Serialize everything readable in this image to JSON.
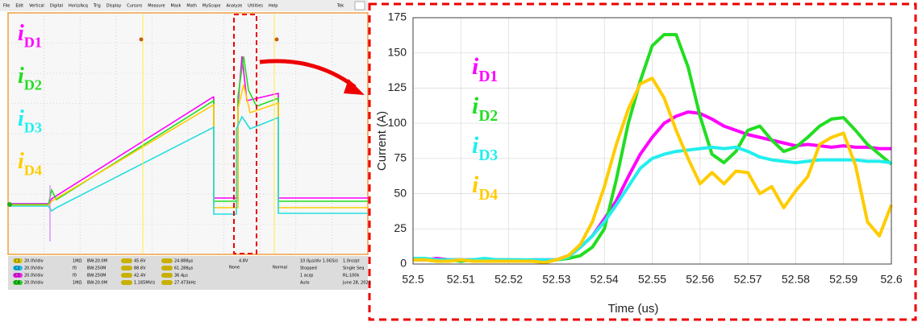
{
  "scope": {
    "menu": [
      "File",
      "Edit",
      "Vertical",
      "Digital",
      "Horiz/Acq",
      "Trig",
      "Display",
      "Cursors",
      "Measure",
      "Mask",
      "Math",
      "MyScope",
      "Analyze",
      "Utilities",
      "Help"
    ],
    "brand": "Tek",
    "channels": [
      {
        "id": "C1",
        "scale": "20.0V/div",
        "coupling": "1MΩ",
        "bw": "BW:20.0M"
      },
      {
        "id": "C2",
        "scale": "20.0V/div",
        "coupling": "f0",
        "bw": "BW:250M"
      },
      {
        "id": "C3",
        "scale": "20.0V/div",
        "coupling": "f0",
        "bw": "BW:250M"
      },
      {
        "id": "C4",
        "scale": "20.0V/div",
        "coupling": "1MΩ",
        "bw": "BW:20.0M"
      }
    ],
    "measurements": [
      [
        "45.6V",
        "24.888µs"
      ],
      [
        "88.6V",
        "61.288µs"
      ],
      [
        "42.4V",
        "36.4µs"
      ],
      [
        "1.165MV/s",
        "27.473kHz"
      ]
    ],
    "trigger": {
      "level": "4.8V",
      "mode": "None",
      "type": "Normal"
    },
    "acquisition": [
      [
        "10.0µs/div 1.0GS/s",
        "1.0ns/pt"
      ],
      [
        "Stopped",
        "Single Seq"
      ],
      [
        "1 acqs",
        "RL:100k"
      ],
      [
        "Auto",
        "June 28, 2022"
      ]
    ]
  },
  "chart_data": {
    "type": "line",
    "xlabel": "Time (us)",
    "ylabel": "Current (A)",
    "x": [
      52.5,
      52.5025,
      52.505,
      52.5075,
      52.51,
      52.5125,
      52.515,
      52.5175,
      52.52,
      52.5225,
      52.525,
      52.5275,
      52.53,
      52.5325,
      52.535,
      52.5375,
      52.54,
      52.5425,
      52.545,
      52.5475,
      52.55,
      52.5525,
      52.555,
      52.5575,
      52.56,
      52.5625,
      52.565,
      52.5675,
      52.57,
      52.5725,
      52.575,
      52.5775,
      52.58,
      52.5825,
      52.585,
      52.5875,
      52.59,
      52.5925,
      52.595,
      52.5975,
      52.6
    ],
    "series": [
      {
        "name": "iD1",
        "color": "#ff00ff",
        "values": [
          3,
          3,
          4,
          3,
          3,
          3,
          3,
          3,
          3,
          2,
          3,
          3,
          3,
          6,
          12,
          20,
          32,
          45,
          62,
          78,
          90,
          100,
          105,
          108,
          107,
          103,
          98,
          95,
          92,
          90,
          88,
          86,
          84,
          85,
          84,
          83,
          84,
          83,
          83,
          82,
          82
        ]
      },
      {
        "name": "iD2",
        "color": "#22dd22",
        "values": [
          3,
          3,
          3,
          3,
          2,
          3,
          3,
          3,
          3,
          3,
          2,
          2,
          3,
          4,
          6,
          12,
          25,
          60,
          100,
          130,
          155,
          163,
          163,
          140,
          105,
          78,
          72,
          80,
          95,
          98,
          88,
          80,
          83,
          90,
          98,
          103,
          104,
          95,
          85,
          78,
          71
        ]
      },
      {
        "name": "iD3",
        "color": "#22eeee",
        "values": [
          4,
          4,
          3,
          3,
          3,
          3,
          4,
          3,
          3,
          3,
          3,
          3,
          3,
          5,
          12,
          20,
          30,
          42,
          55,
          68,
          75,
          78,
          80,
          81,
          82,
          83,
          82,
          83,
          80,
          76,
          74,
          73,
          72,
          73,
          74,
          74,
          74,
          74,
          73,
          73,
          72
        ]
      },
      {
        "name": "iD4",
        "color": "#ffcc00",
        "values": [
          3,
          3,
          2,
          2,
          3,
          2,
          2,
          2,
          2,
          2,
          2,
          1,
          3,
          6,
          14,
          30,
          55,
          85,
          110,
          128,
          132,
          118,
          95,
          75,
          57,
          65,
          57,
          66,
          65,
          50,
          55,
          40,
          52,
          62,
          85,
          90,
          93,
          70,
          30,
          20,
          42
        ]
      }
    ],
    "xlim": [
      52.5,
      52.6
    ],
    "ylim": [
      0,
      175
    ],
    "xticks": [
      52.5,
      52.51,
      52.52,
      52.53,
      52.54,
      52.55,
      52.56,
      52.57,
      52.58,
      52.59,
      52.6
    ],
    "yticks": [
      0,
      25,
      50,
      75,
      100,
      125,
      150,
      175
    ],
    "grid": true
  }
}
